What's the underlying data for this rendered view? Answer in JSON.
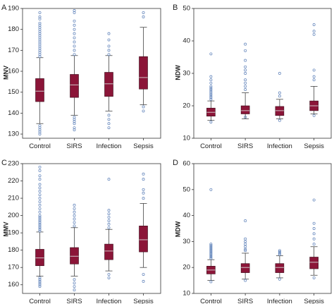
{
  "chart_data": [
    {
      "type": "box",
      "panel": "A",
      "ylabel": "MNV",
      "ylim": [
        128,
        190
      ],
      "yticks": [
        130,
        140,
        150,
        160,
        170,
        180,
        190
      ],
      "categories": [
        "Control",
        "SIRS",
        "Infection",
        "Sepsis"
      ],
      "box_color": "#8b1538",
      "outlier_color": "#5b7fb8",
      "boxes": [
        {
          "whisker_low": 135,
          "q1": 145.5,
          "median": 150.5,
          "q3": 156.5,
          "whisker_high": 166.5,
          "outliers": [
            130,
            131,
            132,
            133,
            134,
            167,
            168,
            169,
            170,
            171,
            172,
            173,
            174,
            175,
            176,
            177,
            178,
            179,
            180,
            181,
            182,
            183,
            185,
            186,
            188
          ]
        },
        {
          "whisker_low": 139,
          "q1": 147.5,
          "median": 153.5,
          "q3": 158.5,
          "whisker_high": 167.5,
          "outliers": [
            132,
            133,
            135,
            136,
            137,
            138,
            168,
            170,
            172,
            174,
            176,
            178,
            180,
            182,
            184,
            188,
            189
          ]
        },
        {
          "whisker_low": 141,
          "q1": 148,
          "median": 154,
          "q3": 159.5,
          "whisker_high": 167.5,
          "outliers": [
            133,
            135,
            137,
            139,
            168,
            170,
            172,
            175,
            178
          ]
        },
        {
          "whisker_low": 144,
          "q1": 151.5,
          "median": 157,
          "q3": 167,
          "whisker_high": 181,
          "outliers": [
            141,
            143,
            186,
            188
          ]
        }
      ]
    },
    {
      "type": "box",
      "panel": "B",
      "ylabel": "NDW",
      "ylim": [
        10,
        50
      ],
      "yticks": [
        10,
        20,
        30,
        40,
        50
      ],
      "categories": [
        "Control",
        "SIRS",
        "Infection",
        "Sepsis"
      ],
      "box_color": "#8b1538",
      "outlier_color": "#5b7fb8",
      "boxes": [
        {
          "whisker_low": 15.5,
          "q1": 16.8,
          "median": 18,
          "q3": 19.3,
          "whisker_high": 21.5,
          "outliers": [
            15,
            22,
            22.5,
            23,
            23.5,
            24,
            24.5,
            25,
            25.5,
            26,
            27,
            28,
            29,
            36
          ]
        },
        {
          "whisker_low": 16,
          "q1": 17.5,
          "median": 18.5,
          "q3": 20,
          "whisker_high": 24,
          "outliers": [
            16.5,
            25,
            26,
            27,
            28,
            30,
            31,
            32,
            34,
            37,
            39
          ]
        },
        {
          "whisker_low": 16,
          "q1": 17,
          "median": 18.5,
          "q3": 19.8,
          "whisker_high": 22,
          "outliers": [
            15.5,
            23,
            24,
            30
          ]
        },
        {
          "whisker_low": 17.5,
          "q1": 18.5,
          "median": 20,
          "q3": 21.5,
          "whisker_high": 26,
          "outliers": [
            17,
            28,
            29,
            31,
            42,
            43,
            45
          ]
        }
      ]
    },
    {
      "type": "box",
      "panel": "C",
      "ylabel": "MMV",
      "ylim": [
        155,
        230
      ],
      "yticks": [
        160,
        170,
        180,
        190,
        200,
        210,
        220,
        230
      ],
      "categories": [
        "Control",
        "SIRS",
        "Infection",
        "Sepsis"
      ],
      "box_color": "#8b1538",
      "outlier_color": "#5b7fb8",
      "boxes": [
        {
          "whisker_low": 165,
          "q1": 171,
          "median": 175.5,
          "q3": 180.5,
          "whisker_high": 190.5,
          "outliers": [
            159,
            160,
            161,
            162,
            163,
            164,
            191,
            192,
            193,
            194,
            195,
            196,
            197,
            198,
            199,
            200,
            202,
            204,
            206,
            208,
            210,
            212,
            214,
            216,
            218,
            221,
            223,
            226,
            228
          ]
        },
        {
          "whisker_low": 165,
          "q1": 172,
          "median": 176.5,
          "q3": 181.5,
          "whisker_high": 193,
          "outliers": [
            157,
            159,
            161,
            163,
            194,
            196,
            198,
            200,
            202,
            204,
            206
          ]
        },
        {
          "whisker_low": 168,
          "q1": 174.5,
          "median": 179.5,
          "q3": 183.5,
          "whisker_high": 192,
          "outliers": [
            164,
            166,
            193,
            195,
            197,
            199,
            201,
            203,
            221
          ]
        },
        {
          "whisker_low": 170,
          "q1": 179,
          "median": 186,
          "q3": 194,
          "whisker_high": 207,
          "outliers": [
            162,
            166,
            210,
            213,
            215,
            221,
            224
          ]
        }
      ]
    },
    {
      "type": "box",
      "panel": "D",
      "ylabel": "MDW",
      "ylim": [
        10,
        60
      ],
      "yticks": [
        10,
        20,
        30,
        40,
        50,
        60
      ],
      "categories": [
        "Control",
        "SIRS",
        "Infection",
        "Sepsis"
      ],
      "box_color": "#8b1538",
      "outlier_color": "#5b7fb8",
      "boxes": [
        {
          "whisker_low": 15,
          "q1": 17.5,
          "median": 19,
          "q3": 20.5,
          "whisker_high": 23,
          "outliers": [
            14.5,
            23.5,
            24,
            24.5,
            25,
            25.5,
            26,
            26.5,
            27,
            27.5,
            28,
            28.5,
            29,
            50
          ]
        },
        {
          "whisker_low": 15.5,
          "q1": 18,
          "median": 20,
          "q3": 21.5,
          "whisker_high": 25.5,
          "outliers": [
            15,
            26.5,
            27,
            28,
            29,
            30,
            31,
            38
          ]
        },
        {
          "whisker_low": 16,
          "q1": 18,
          "median": 20,
          "q3": 21.5,
          "whisker_high": 24.5,
          "outliers": [
            15.5,
            25,
            25.5,
            26,
            26.5
          ]
        },
        {
          "whisker_low": 17,
          "q1": 19.5,
          "median": 22,
          "q3": 24,
          "whisker_high": 28,
          "outliers": [
            16,
            29,
            31,
            33,
            35,
            37,
            46
          ]
        }
      ]
    }
  ]
}
